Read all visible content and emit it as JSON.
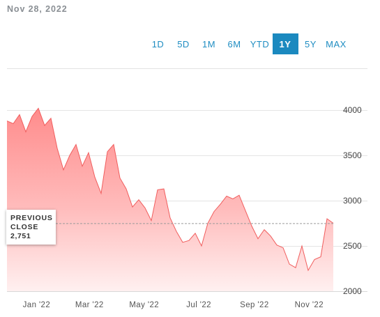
{
  "date_label": "Nov 28, 2022",
  "ranges": [
    {
      "label": "1D",
      "active": false
    },
    {
      "label": "5D",
      "active": false
    },
    {
      "label": "1M",
      "active": false
    },
    {
      "label": "6M",
      "active": false
    },
    {
      "label": "YTD",
      "active": false
    },
    {
      "label": "1Y",
      "active": true
    },
    {
      "label": "5Y",
      "active": false
    },
    {
      "label": "MAX",
      "active": false
    }
  ],
  "tooltip": {
    "line1": "PREVIOUS",
    "line2": "CLOSE",
    "value": "2,751"
  },
  "colors": {
    "accent": "#1b89bf",
    "area_top": "#ff8a8a",
    "line": "#f05d5d"
  },
  "chart_data": {
    "type": "area",
    "title": "",
    "xlabel": "",
    "ylabel": "",
    "ylim": [
      2000,
      4000
    ],
    "yticks": [
      2000,
      2500,
      3000,
      3500,
      4000
    ],
    "ytick_labels": [
      "2000",
      "2500",
      "3000",
      "3500",
      "4000"
    ],
    "xtick_labels": [
      "Jan '22",
      "Mar '22",
      "May '22",
      "Jul '22",
      "Sep '22",
      "Nov '22"
    ],
    "xtick_dates": [
      "2022-01-01",
      "2022-03-01",
      "2022-05-01",
      "2022-07-01",
      "2022-09-01",
      "2022-11-01"
    ],
    "reference_line": {
      "label": "PREVIOUS CLOSE",
      "value": 2751
    },
    "x": [
      "2021-11-29",
      "2021-12-06",
      "2021-12-13",
      "2021-12-20",
      "2021-12-27",
      "2022-01-03",
      "2022-01-10",
      "2022-01-17",
      "2022-01-24",
      "2022-01-31",
      "2022-02-07",
      "2022-02-14",
      "2022-02-21",
      "2022-02-28",
      "2022-03-07",
      "2022-03-14",
      "2022-03-21",
      "2022-03-28",
      "2022-04-04",
      "2022-04-11",
      "2022-04-18",
      "2022-04-25",
      "2022-05-02",
      "2022-05-09",
      "2022-05-16",
      "2022-05-23",
      "2022-05-30",
      "2022-06-06",
      "2022-06-13",
      "2022-06-20",
      "2022-06-27",
      "2022-07-04",
      "2022-07-11",
      "2022-07-18",
      "2022-07-25",
      "2022-08-01",
      "2022-08-08",
      "2022-08-15",
      "2022-08-22",
      "2022-08-29",
      "2022-09-05",
      "2022-09-12",
      "2022-09-19",
      "2022-09-26",
      "2022-10-03",
      "2022-10-10",
      "2022-10-17",
      "2022-10-24",
      "2022-10-31",
      "2022-11-07",
      "2022-11-14",
      "2022-11-21",
      "2022-11-28"
    ],
    "values": [
      3880,
      3850,
      3950,
      3760,
      3930,
      4020,
      3830,
      3910,
      3580,
      3340,
      3500,
      3620,
      3380,
      3530,
      3260,
      3080,
      3540,
      3620,
      3250,
      3130,
      2930,
      3010,
      2920,
      2780,
      3120,
      3130,
      2810,
      2660,
      2540,
      2560,
      2640,
      2500,
      2750,
      2880,
      2960,
      3050,
      3020,
      3060,
      2890,
      2720,
      2580,
      2680,
      2610,
      2510,
      2480,
      2300,
      2260,
      2500,
      2230,
      2350,
      2380,
      2800,
      2751
    ]
  }
}
